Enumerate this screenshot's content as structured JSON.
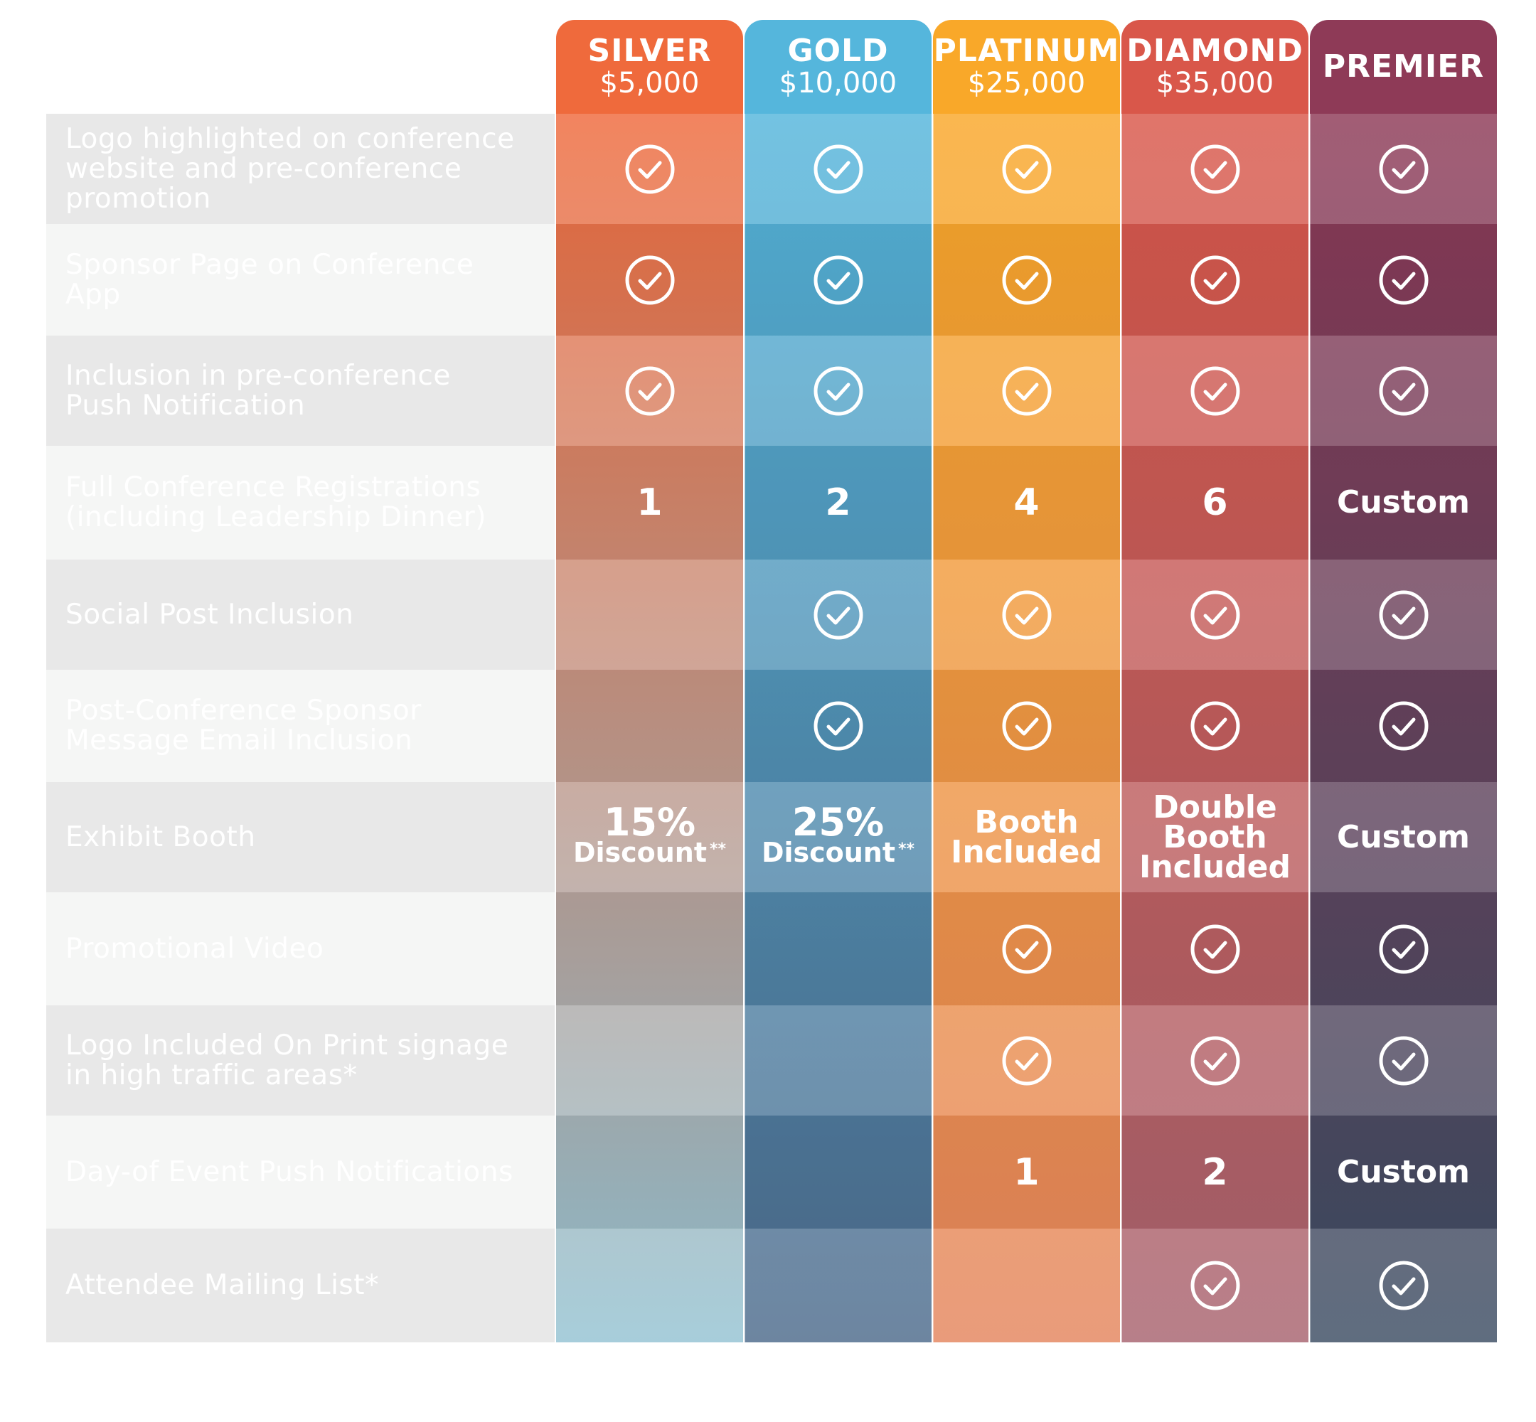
{
  "tiers": [
    {
      "name": "SILVER",
      "price": "$5,000",
      "color_top": "#ef6a3c",
      "color_bottom": "#94c3d3"
    },
    {
      "name": "GOLD",
      "price": "$10,000",
      "color_top": "#55b6dc",
      "color_bottom": "#4e6b8c"
    },
    {
      "name": "PLATINUM",
      "price": "$25,000",
      "color_top": "#f9a829",
      "color_bottom": "#e5865e"
    },
    {
      "name": "DIAMOND",
      "price": "$35,000",
      "color_top": "#d9574a",
      "color_bottom": "#a8636f"
    },
    {
      "name": "PREMIER",
      "price": "",
      "color_top": "#8e3a57",
      "color_bottom": "#3c4d63"
    }
  ],
  "rows": [
    {
      "label": "Logo highlighted on conference website and pre-conference promotion",
      "cells": [
        "check",
        "check",
        "check",
        "check",
        "check"
      ]
    },
    {
      "label": "Sponsor Page on Conference App",
      "cells": [
        "check",
        "check",
        "check",
        "check",
        "check"
      ]
    },
    {
      "label": "Inclusion in pre-conference Push Notification",
      "cells": [
        "check",
        "check",
        "check",
        "check",
        "check"
      ]
    },
    {
      "label": "Full Conference Registrations (including Leadership Dinner)",
      "cells": [
        "1",
        "2",
        "4",
        "6",
        "Custom"
      ]
    },
    {
      "label": "Social Post Inclusion",
      "cells": [
        "",
        "check",
        "check",
        "check",
        "check"
      ]
    },
    {
      "label": "Post-Conference Sponsor Message Email Inclusion",
      "cells": [
        "",
        "check",
        "check",
        "check",
        "check"
      ]
    },
    {
      "label": "Exhibit Booth",
      "cells": [
        "15%|Discount **",
        "25%|Discount **",
        "Booth|Included",
        "Double|Booth|Included",
        "Custom"
      ]
    },
    {
      "label": "Promotional Video",
      "cells": [
        "",
        "",
        "check",
        "check",
        "check"
      ]
    },
    {
      "label": "Logo Included On Print signage in high traffic areas*",
      "cells": [
        "",
        "",
        "check",
        "check",
        "check"
      ]
    },
    {
      "label": "Day-of Event Push Notifications",
      "cells": [
        "",
        "",
        "1",
        "2",
        "Custom"
      ]
    },
    {
      "label": "Attendee Mailing List*",
      "cells": [
        "",
        "",
        "",
        "check",
        "check"
      ]
    }
  ]
}
